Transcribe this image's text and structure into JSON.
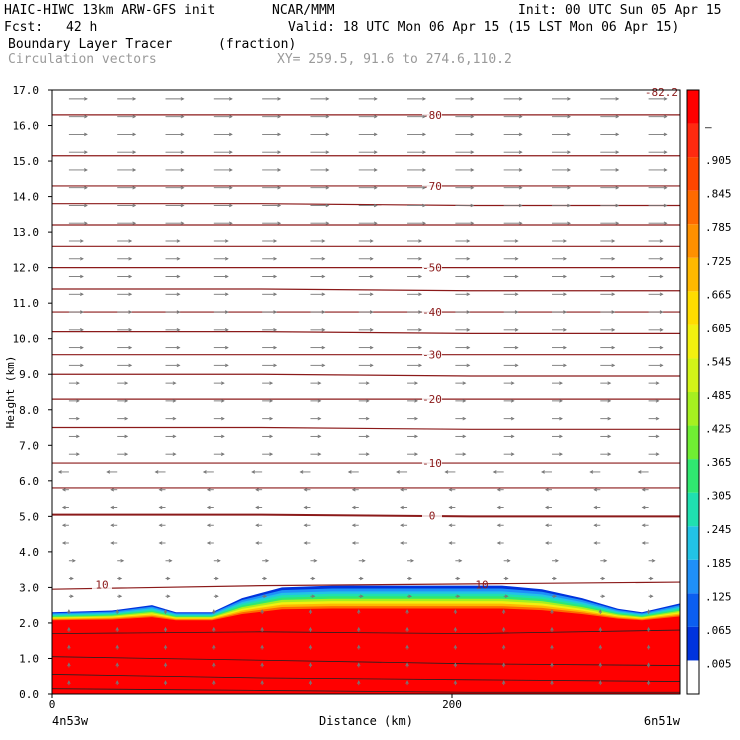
{
  "header": {
    "model": "HAIC-HIWC 13km ARW-GFS init",
    "org": "NCAR/MMM",
    "init": "Init: 00 UTC Sun 05 Apr 15",
    "fcst_label": "Fcst:",
    "fcst_value": "42 h",
    "valid": "Valid: 18 UTC Mon 06 Apr 15 (15 LST Mon 06 Apr 15)",
    "field": "Boundary Layer Tracer",
    "field_units": "(fraction)",
    "overlay": "Circulation vectors",
    "xy": "XY= 259.5, 91.6 to 274.6,110.2"
  },
  "chart_data": {
    "type": "heatmap",
    "title": "Boundary Layer Tracer",
    "ylabel": "Height (km)",
    "xlabel": "Distance (km)",
    "ylim": [
      0,
      17
    ],
    "y_ticks": [
      "0.0",
      "1.0",
      "2.0",
      "3.0",
      "4.0",
      "5.0",
      "6.0",
      "7.0",
      "8.0",
      "9.0",
      "10.0",
      "11.0",
      "12.0",
      "13.0",
      "14.0",
      "15.0",
      "16.0",
      "17.0"
    ],
    "xlim": [
      0,
      314
    ],
    "x_ticks": [
      {
        "value": 0,
        "label": "0"
      },
      {
        "value": 200,
        "label": "200"
      }
    ],
    "x_end_labels": {
      "left": "4n53w",
      "right": "6n51w"
    },
    "colorbar_colors": [
      "#ffffff",
      "#0033dd",
      "#0b5ef0",
      "#1f90f8",
      "#22c3e6",
      "#1fe0b0",
      "#30e870",
      "#70ee33",
      "#a6f020",
      "#d2f418",
      "#f2f010",
      "#ffdc00",
      "#ffb800",
      "#ff9000",
      "#ff6a00",
      "#ff4600",
      "#ff2a10",
      "#ff0000"
    ],
    "colorbar_labels": [
      ".005",
      ".065",
      ".125",
      ".185",
      ".245",
      ".305",
      ".365",
      ".425",
      ".485",
      ".545",
      ".605",
      ".665",
      ".725",
      ".785",
      ".845",
      ".905",
      "–"
    ],
    "contour_color": "#8b1a1a",
    "vector_color": "#777777",
    "tracer_top_profile": [
      {
        "x": 0,
        "z": 2.3
      },
      {
        "x": 30,
        "z": 2.35
      },
      {
        "x": 50,
        "z": 2.5
      },
      {
        "x": 62,
        "z": 2.3
      },
      {
        "x": 80,
        "z": 2.3
      },
      {
        "x": 95,
        "z": 2.7
      },
      {
        "x": 115,
        "z": 3.0
      },
      {
        "x": 140,
        "z": 3.05
      },
      {
        "x": 200,
        "z": 3.05
      },
      {
        "x": 225,
        "z": 3.05
      },
      {
        "x": 245,
        "z": 2.95
      },
      {
        "x": 265,
        "z": 2.7
      },
      {
        "x": 283,
        "z": 2.4
      },
      {
        "x": 295,
        "z": 2.3
      },
      {
        "x": 314,
        "z": 2.55
      }
    ],
    "tracer_layers": [
      {
        "z_top_frac": 1.0,
        "color": "#0033dd"
      },
      {
        "z_top_frac": 0.93,
        "color": "#1f90f8"
      },
      {
        "z_top_frac": 0.86,
        "color": "#22c3e6"
      },
      {
        "z_top_frac": 0.8,
        "color": "#1fe0b0"
      },
      {
        "z_top_frac": 0.74,
        "color": "#30e870"
      },
      {
        "z_top_frac": 0.68,
        "color": "#a6f020"
      },
      {
        "z_top_frac": 0.62,
        "color": "#f2f010"
      },
      {
        "z_top_frac": 0.56,
        "color": "#ffb800"
      },
      {
        "z_top_frac": 0.5,
        "color": "#ff6a00"
      },
      {
        "z_top_frac": 0.44,
        "color": "#ff0000"
      }
    ],
    "temperature_contours": [
      {
        "value": 10,
        "label": "10",
        "labeled": true,
        "z": [
          2.95,
          3.05,
          3.1,
          3.15
        ]
      },
      {
        "value": 0,
        "label": "0",
        "labeled": true,
        "z": [
          5.05,
          5.05,
          5.0,
          5.0
        ]
      },
      {
        "value": -5,
        "label": "",
        "labeled": false,
        "z": [
          5.8,
          5.8,
          5.8,
          5.8
        ]
      },
      {
        "value": -10,
        "label": "-10",
        "labeled": true,
        "z": [
          6.5,
          6.5,
          6.5,
          6.5
        ]
      },
      {
        "value": -15,
        "label": "",
        "labeled": false,
        "z": [
          7.5,
          7.5,
          7.45,
          7.45
        ]
      },
      {
        "value": -20,
        "label": "-20",
        "labeled": true,
        "z": [
          8.3,
          8.3,
          8.3,
          8.3
        ]
      },
      {
        "value": -25,
        "label": "",
        "labeled": false,
        "z": [
          9.0,
          9.0,
          8.95,
          8.95
        ]
      },
      {
        "value": -30,
        "label": "-30",
        "labeled": true,
        "z": [
          9.55,
          9.55,
          9.55,
          9.55
        ]
      },
      {
        "value": -35,
        "label": "",
        "labeled": false,
        "z": [
          10.2,
          10.2,
          10.15,
          10.15
        ]
      },
      {
        "value": -40,
        "label": "-40",
        "labeled": true,
        "z": [
          10.75,
          10.75,
          10.75,
          10.75
        ]
      },
      {
        "value": -45,
        "label": "",
        "labeled": false,
        "z": [
          11.4,
          11.4,
          11.35,
          11.35
        ]
      },
      {
        "value": -50,
        "label": "-50",
        "labeled": true,
        "z": [
          12.0,
          12.0,
          12.0,
          12.0
        ]
      },
      {
        "value": -55,
        "label": "",
        "labeled": false,
        "z": [
          12.6,
          12.6,
          12.6,
          12.6
        ]
      },
      {
        "value": -60,
        "label": "",
        "labeled": false,
        "z": [
          13.2,
          13.2,
          13.2,
          13.2
        ]
      },
      {
        "value": -65,
        "label": "",
        "labeled": false,
        "z": [
          13.8,
          13.8,
          13.75,
          13.75
        ]
      },
      {
        "value": -70,
        "label": "-70",
        "labeled": true,
        "z": [
          14.3,
          14.3,
          14.3,
          14.3
        ]
      },
      {
        "value": -75,
        "label": "",
        "labeled": false,
        "z": [
          15.15,
          15.15,
          15.15,
          15.15
        ]
      },
      {
        "value": -80,
        "label": "-80",
        "labeled": true,
        "z": [
          16.3,
          16.3,
          16.3,
          16.3
        ]
      }
    ],
    "max_label": "-82.2",
    "bl_lines": [
      {
        "z": [
          1.7,
          1.75,
          1.7,
          1.8
        ]
      },
      {
        "z": [
          1.05,
          0.95,
          0.85,
          0.8
        ]
      },
      {
        "z": [
          0.55,
          0.45,
          0.4,
          0.35
        ]
      },
      {
        "z": [
          0.15,
          0.1,
          0.05,
          0.05
        ]
      }
    ]
  }
}
